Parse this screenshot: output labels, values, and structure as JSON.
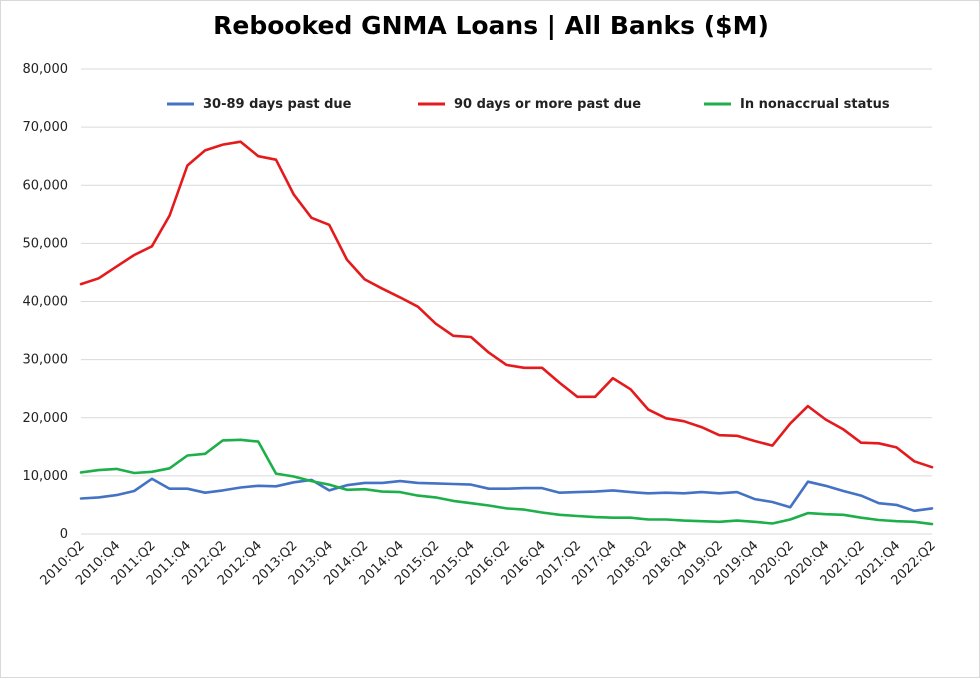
{
  "chart_data": {
    "type": "line",
    "title": "Rebooked GNMA Loans | All Banks ($M)",
    "xlabel": "",
    "ylabel": "",
    "ylim": [
      0,
      80000
    ],
    "yticks": [
      "0",
      "10,000",
      "20,000",
      "30,000",
      "40,000",
      "50,000",
      "60,000",
      "70,000",
      "80,000"
    ],
    "grid": true,
    "legend_position": "top",
    "x": [
      "2010:Q2",
      "2010:Q3",
      "2010:Q4",
      "2011:Q1",
      "2011:Q2",
      "2011:Q3",
      "2011:Q4",
      "2012:Q1",
      "2012:Q2",
      "2012:Q3",
      "2012:Q4",
      "2013:Q1",
      "2013:Q2",
      "2013:Q3",
      "2013:Q4",
      "2014:Q1",
      "2014:Q2",
      "2014:Q3",
      "2014:Q4",
      "2015:Q1",
      "2015:Q2",
      "2015:Q3",
      "2015:Q4",
      "2016:Q1",
      "2016:Q2",
      "2016:Q3",
      "2016:Q4",
      "2017:Q1",
      "2017:Q2",
      "2017:Q3",
      "2017:Q4",
      "2018:Q1",
      "2018:Q2",
      "2018:Q3",
      "2018:Q4",
      "2019:Q1",
      "2019:Q2",
      "2019:Q3",
      "2019:Q4",
      "2020:Q1",
      "2020:Q2",
      "2020:Q3",
      "2020:Q4",
      "2021:Q1",
      "2021:Q2",
      "2021:Q3",
      "2021:Q4",
      "2022:Q1",
      "2022:Q2"
    ],
    "x_tick_labels": [
      "2010:Q2",
      "2010:Q4",
      "2011:Q2",
      "2011:Q4",
      "2012:Q2",
      "2012:Q4",
      "2013:Q2",
      "2013:Q4",
      "2014:Q2",
      "2014:Q4",
      "2015:Q2",
      "2015:Q4",
      "2016:Q2",
      "2016:Q4",
      "2017:Q2",
      "2017:Q4",
      "2018:Q2",
      "2018:Q4",
      "2019:Q2",
      "2019:Q4",
      "2020:Q2",
      "2020:Q4",
      "2021:Q2",
      "2021:Q4",
      "2022:Q2"
    ],
    "series": [
      {
        "name": "30-89 days past due",
        "color": "#4472C4",
        "values": [
          6100,
          6300,
          6700,
          7400,
          9500,
          7800,
          7800,
          7100,
          7500,
          8000,
          8300,
          8200,
          8900,
          9300,
          7500,
          8400,
          8800,
          8800,
          9100,
          8800,
          8700,
          8600,
          8500,
          7800,
          7800,
          7900,
          7900,
          7100,
          7200,
          7300,
          7500,
          7200,
          7000,
          7100,
          7000,
          7200,
          7000,
          7200,
          6000,
          5500,
          4600,
          9000,
          8300,
          7400,
          6600,
          5300,
          5000,
          4000,
          4400
        ]
      },
      {
        "name": "90 days or more past due",
        "color": "#E41A1C",
        "values": [
          43000,
          44000,
          46000,
          48000,
          49500,
          54800,
          63400,
          66000,
          67000,
          67500,
          65000,
          64400,
          58400,
          54400,
          53200,
          47200,
          43800,
          42200,
          40700,
          39100,
          36200,
          34100,
          33900,
          31200,
          29100,
          28600,
          28600,
          26000,
          23600,
          23600,
          26800,
          24900,
          21400,
          19900,
          19400,
          18400,
          17000,
          16900,
          16000,
          15200,
          19000,
          22000,
          19700,
          18000,
          15700,
          15600,
          14900,
          12500,
          11500
        ]
      },
      {
        "name": "In nonaccrual status",
        "color": "#1DAF4A",
        "values": [
          10600,
          11000,
          11200,
          10500,
          10700,
          11300,
          13500,
          13800,
          16100,
          16200,
          15900,
          10400,
          9900,
          9100,
          8500,
          7600,
          7700,
          7300,
          7200,
          6600,
          6300,
          5700,
          5300,
          4900,
          4400,
          4200,
          3700,
          3300,
          3100,
          2900,
          2800,
          2800,
          2500,
          2500,
          2300,
          2200,
          2100,
          2300,
          2100,
          1800,
          2500,
          3600,
          3400,
          3300,
          2800,
          2400,
          2200,
          2100,
          1700
        ]
      }
    ]
  }
}
